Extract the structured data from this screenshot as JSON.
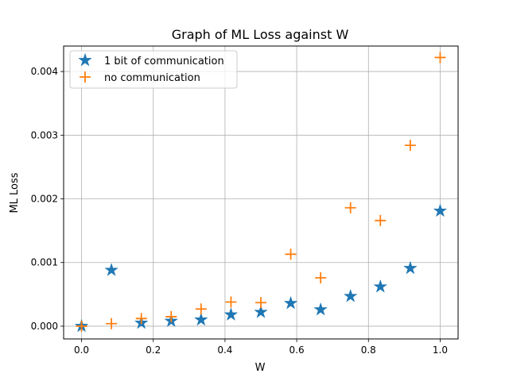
{
  "chart_data": {
    "type": "scatter",
    "title": "Graph of ML Loss against W",
    "xlabel": "W",
    "ylabel": "ML Loss",
    "xlim": [
      -0.05,
      1.05
    ],
    "ylim": [
      -0.0002,
      0.0044
    ],
    "xticks": [
      0.0,
      0.2,
      0.4,
      0.6,
      0.8,
      1.0
    ],
    "xtick_labels": [
      "0.0",
      "0.2",
      "0.4",
      "0.6",
      "0.8",
      "1.0"
    ],
    "yticks": [
      0.0,
      0.001,
      0.002,
      0.003,
      0.004
    ],
    "ytick_labels": [
      "0.000",
      "0.001",
      "0.002",
      "0.003",
      "0.004"
    ],
    "grid": true,
    "legend_position": "top-left",
    "series": [
      {
        "name": "1 bit of communication",
        "marker": "star",
        "color": "#1f77b4",
        "x": [
          0.0,
          0.0833,
          0.1667,
          0.25,
          0.3333,
          0.4167,
          0.5,
          0.5833,
          0.6667,
          0.75,
          0.8333,
          0.9167,
          1.0
        ],
        "y": [
          0.0,
          0.00088,
          5e-05,
          8e-05,
          0.0001,
          0.00018,
          0.00022,
          0.00036,
          0.00026,
          0.00047,
          0.00062,
          0.00091,
          0.00181
        ]
      },
      {
        "name": "no communication",
        "marker": "plus",
        "color": "#ff7f0e",
        "x": [
          0.0,
          0.0833,
          0.1667,
          0.25,
          0.3333,
          0.4167,
          0.5,
          0.5833,
          0.6667,
          0.75,
          0.8333,
          0.9167,
          1.0
        ],
        "y": [
          0.0,
          4e-05,
          0.00012,
          0.00015,
          0.00027,
          0.00038,
          0.00037,
          0.00113,
          0.00076,
          0.00186,
          0.00166,
          0.00284,
          0.00422
        ]
      }
    ]
  }
}
